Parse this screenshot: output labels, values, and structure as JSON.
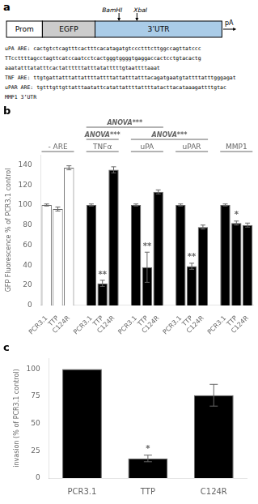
{
  "chart_data": [
    {
      "type": "diagram",
      "title": "a",
      "boxes": [
        {
          "name": "Prom",
          "color": "white"
        },
        {
          "name": "EGFP",
          "color": "#cccccc"
        },
        {
          "name": "3’UTR",
          "color": "#aacce8"
        }
      ],
      "annotations": [
        "BamHI",
        "XbaI",
        "pA"
      ],
      "sequences": [
        "uPA ARE: cactgtctcagtttcactttcacatagatgtccctttcttggccagttatccc",
        "TTccttttagcctagttcatccaatcctcactgggtggggtgaggaccactcctgtacactg",
        "aaatatttatatttcactattttttatttatatttttgtaattttaaat",
        "TNF ARE: ttgtgattatttattattttattttattatttatttacagatgaatgtattttatttgggagat",
        "uPAR ARE: tgtttgttgttatttaatattcatattattttattttatacttacataaagattttgtac",
        "MMP1 3’UTR"
      ]
    },
    {
      "type": "bar",
      "title": "b",
      "ylabel": "GFP Fluorescence % of PCR3.1 control",
      "groups": [
        {
          "name": "- ARE",
          "categories": [
            "PCR3.1",
            "TTP",
            "C124R"
          ],
          "values": [
            100,
            96,
            137
          ],
          "errors": [
            1,
            2,
            2
          ],
          "color": "white"
        },
        {
          "name": "TNFα",
          "categories": [
            "PCR3.1",
            "TTP",
            "C124R"
          ],
          "values": [
            100,
            22,
            135
          ],
          "errors": [
            1,
            3,
            3
          ],
          "color": "black",
          "significance": [
            null,
            "**",
            null
          ]
        },
        {
          "name": "uPA",
          "categories": [
            "PCR3.1",
            "TTP",
            "C124R"
          ],
          "values": [
            100,
            38,
            113
          ],
          "errors": [
            1,
            15,
            2
          ],
          "color": "black",
          "significance": [
            null,
            "**",
            null
          ]
        },
        {
          "name": "uPAR",
          "categories": [
            "PCR3.1",
            "TTP",
            "C124R"
          ],
          "values": [
            100,
            39,
            78
          ],
          "errors": [
            1,
            3,
            2
          ],
          "color": "black",
          "significance": [
            null,
            "**",
            null
          ]
        },
        {
          "name": "MMP1",
          "categories": [
            "PCR3.1",
            "TTP",
            "C124R"
          ],
          "values": [
            100,
            82,
            80
          ],
          "errors": [
            1,
            2,
            2
          ],
          "color": "black",
          "significance": [
            null,
            "*",
            null
          ]
        }
      ],
      "annotations": [
        {
          "text": "ANOVA***",
          "groups": [
            "TNFα"
          ]
        },
        {
          "text": "ANOVA***",
          "groups": [
            "TNFα",
            "uPA"
          ]
        },
        {
          "text": "ANOVA***",
          "groups": [
            "uPA",
            "uPAR"
          ]
        }
      ],
      "ylim": [
        0,
        150
      ],
      "yticks": [
        0,
        20,
        40,
        60,
        80,
        100,
        120,
        140
      ],
      "grid": false
    },
    {
      "type": "bar",
      "title": "c",
      "ylabel": "invasion (% of PCR3.1 control)",
      "categories": [
        "PCR3.1",
        "TTP",
        "C124R"
      ],
      "values": [
        100,
        18,
        76
      ],
      "errors": [
        0,
        3,
        10
      ],
      "color": "black",
      "significance": [
        null,
        "*",
        null
      ],
      "ylim": [
        0,
        110
      ],
      "yticks": [
        0,
        25,
        50,
        75,
        100
      ],
      "grid": false
    }
  ]
}
